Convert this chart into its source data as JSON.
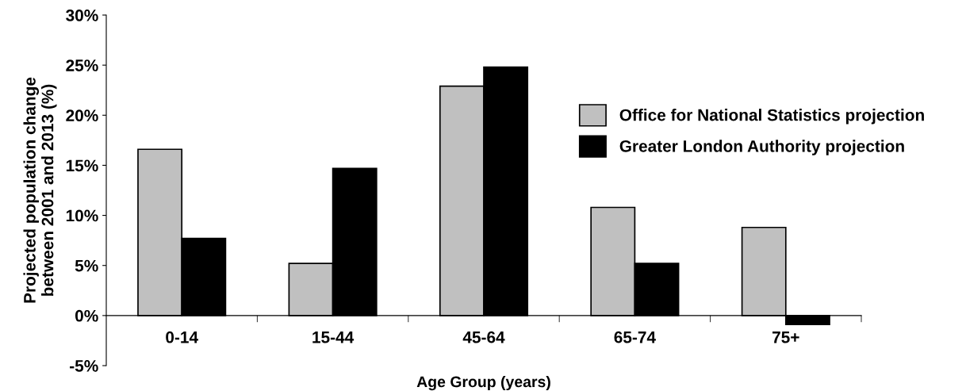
{
  "chart_data": {
    "type": "bar",
    "xlabel": "Age Group (years)",
    "ylabel": "Projected population change\nbetween 2001 and 2013 (%)",
    "categories": [
      "0-14",
      "15-44",
      "45-64",
      "65-74",
      "75+"
    ],
    "series": [
      {
        "name": "Office for National Statistics projection",
        "color": "#c0c0c0",
        "values": [
          16.6,
          5.2,
          22.9,
          10.8,
          8.8
        ]
      },
      {
        "name": "Greater London Authority projection",
        "color": "#000000",
        "values": [
          7.7,
          14.7,
          24.8,
          5.2,
          -0.9
        ]
      }
    ],
    "ylim": [
      -5,
      30
    ],
    "yticks": [
      {
        "value": -5,
        "label": "-5%"
      },
      {
        "value": 0,
        "label": "0%"
      },
      {
        "value": 5,
        "label": "5%"
      },
      {
        "value": 10,
        "label": "10%"
      },
      {
        "value": 15,
        "label": "15%"
      },
      {
        "value": 20,
        "label": "20%"
      },
      {
        "value": 25,
        "label": "25%"
      },
      {
        "value": 30,
        "label": "30%"
      }
    ],
    "grid": false,
    "legend": "right"
  }
}
